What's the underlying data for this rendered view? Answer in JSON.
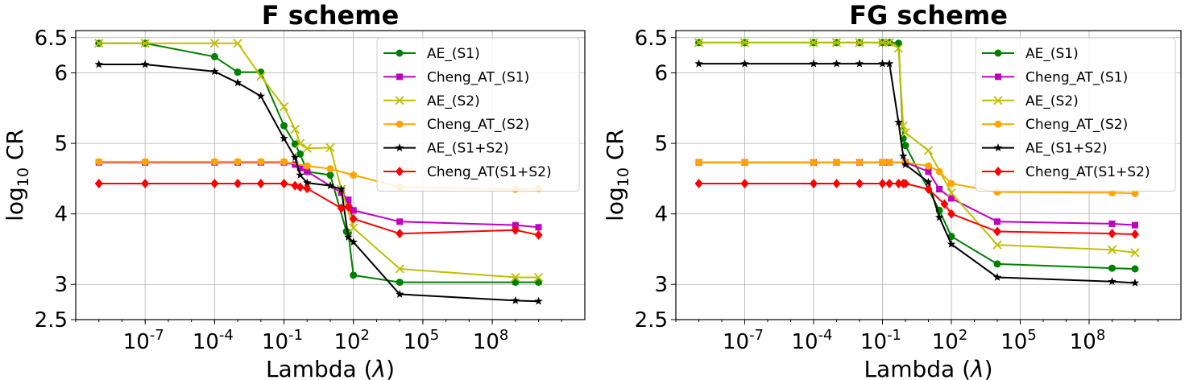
{
  "chart_data": [
    {
      "type": "line",
      "title": "F scheme",
      "xlabel": "Lambda (λ)",
      "ylabel": "log10 CR",
      "x_scale": "log",
      "xlim": [
        1e-10,
        1000000000000.0
      ],
      "ylim": [
        2.5,
        6.6
      ],
      "x_ticks": [
        1e-07,
        0.0001,
        0.1,
        100,
        100000,
        100000000
      ],
      "x_tick_labels": [
        "10-7",
        "10-4",
        "10-1",
        "102",
        "105",
        "108"
      ],
      "y_ticks": [
        2.5,
        3,
        4,
        5,
        6,
        6.5
      ],
      "y_tick_labels": [
        "2.5",
        "3",
        "4",
        "5",
        "6",
        "6.5"
      ],
      "grid": true,
      "legend_position": "top-right",
      "series": [
        {
          "name": "AE_(S1)",
          "color": "#008000",
          "marker": "circle",
          "x": [
            1e-09,
            1e-07,
            0.0001,
            0.001,
            0.01,
            0.1,
            0.3,
            0.5,
            1,
            10,
            50,
            60,
            100,
            10000,
            1000000000,
            10000000000
          ],
          "y": [
            6.42,
            6.42,
            6.23,
            6.01,
            6.01,
            5.25,
            4.99,
            4.85,
            4.6,
            4.55,
            3.75,
            3.73,
            3.13,
            3.03,
            3.03,
            3.03
          ]
        },
        {
          "name": "Cheng_AT_(S1)",
          "color": "#bf00bf",
          "marker": "square",
          "x": [
            1e-09,
            1e-07,
            0.0001,
            0.001,
            0.01,
            0.1,
            0.3,
            0.5,
            1,
            30,
            60,
            100,
            10000,
            1000000000,
            10000000000
          ],
          "y": [
            4.73,
            4.73,
            4.73,
            4.73,
            4.73,
            4.73,
            4.7,
            4.65,
            4.6,
            4.3,
            4.2,
            4.05,
            3.89,
            3.84,
            3.81
          ]
        },
        {
          "name": "AE_(S2)",
          "color": "#bfbf00",
          "marker": "x",
          "x": [
            1e-09,
            1e-07,
            0.0001,
            0.001,
            0.01,
            0.1,
            0.3,
            0.5,
            1,
            10,
            30,
            100,
            10000,
            1000000000,
            10000000000
          ],
          "y": [
            6.42,
            6.42,
            6.42,
            6.42,
            5.95,
            5.52,
            5.2,
            5.0,
            4.93,
            4.94,
            4.35,
            3.8,
            3.22,
            3.1,
            3.1
          ]
        },
        {
          "name": "Cheng_AT_(S2)",
          "color": "#ffa500",
          "marker": "circle",
          "x": [
            1e-09,
            1e-07,
            0.0001,
            0.001,
            0.01,
            0.1,
            1,
            10,
            100,
            10000,
            1000000000,
            10000000000
          ],
          "y": [
            4.74,
            4.74,
            4.74,
            4.74,
            4.74,
            4.74,
            4.68,
            4.64,
            4.55,
            4.38,
            4.35,
            4.36
          ]
        },
        {
          "name": "AE_(S1+S2)",
          "color": "#000000",
          "marker": "star",
          "x": [
            1e-09,
            1e-07,
            0.0001,
            0.001,
            0.01,
            0.1,
            0.3,
            0.5,
            1,
            10,
            30,
            60,
            100,
            10000,
            1000000000,
            10000000000
          ],
          "y": [
            6.12,
            6.12,
            6.02,
            5.86,
            5.67,
            5.07,
            4.8,
            4.55,
            4.44,
            4.4,
            4.35,
            3.67,
            3.6,
            2.86,
            2.77,
            2.76
          ]
        },
        {
          "name": "Cheng_AT(S1+S2)",
          "color": "#ff0000",
          "marker": "diamond",
          "x": [
            1e-09,
            1e-07,
            0.0001,
            0.001,
            0.01,
            0.1,
            0.3,
            0.5,
            1,
            30,
            60,
            100,
            10000,
            1000000000,
            10000000000
          ],
          "y": [
            4.43,
            4.43,
            4.43,
            4.43,
            4.43,
            4.43,
            4.4,
            4.38,
            4.36,
            4.08,
            4.1,
            3.93,
            3.72,
            3.77,
            3.7
          ]
        }
      ]
    },
    {
      "type": "line",
      "title": "FG scheme",
      "xlabel": "Lambda (λ)",
      "ylabel": "log10 CR",
      "x_scale": "log",
      "xlim": [
        1e-10,
        1000000000000.0
      ],
      "ylim": [
        2.5,
        6.6
      ],
      "x_ticks": [
        1e-07,
        0.0001,
        0.1,
        100,
        100000,
        100000000
      ],
      "x_tick_labels": [
        "10-7",
        "10-4",
        "10-1",
        "102",
        "105",
        "108"
      ],
      "y_ticks": [
        2.5,
        3,
        4,
        5,
        6,
        6.5
      ],
      "y_tick_labels": [
        "2.5",
        "3",
        "4",
        "5",
        "6",
        "6.5"
      ],
      "grid": true,
      "legend_position": "top-right",
      "series": [
        {
          "name": "AE_(S1)",
          "color": "#008000",
          "marker": "circle",
          "x": [
            1e-09,
            1e-07,
            0.0001,
            0.001,
            0.01,
            0.1,
            0.2,
            0.5,
            0.8,
            1,
            30,
            100,
            10000,
            1000000000,
            10000000000
          ],
          "y": [
            6.43,
            6.43,
            6.43,
            6.43,
            6.43,
            6.43,
            6.43,
            6.42,
            5.07,
            4.97,
            4.05,
            3.68,
            3.29,
            3.23,
            3.22
          ]
        },
        {
          "name": "Cheng_AT_(S1)",
          "color": "#bf00bf",
          "marker": "square",
          "x": [
            1e-09,
            1e-07,
            0.0001,
            0.001,
            0.01,
            0.1,
            0.2,
            1,
            10,
            30,
            100,
            10000,
            1000000000,
            10000000000
          ],
          "y": [
            4.73,
            4.73,
            4.73,
            4.73,
            4.73,
            4.73,
            4.73,
            4.73,
            4.6,
            4.35,
            4.22,
            3.89,
            3.86,
            3.84
          ]
        },
        {
          "name": "AE_(S2)",
          "color": "#bfbf00",
          "marker": "x",
          "x": [
            1e-09,
            1e-07,
            0.0001,
            0.001,
            0.01,
            0.1,
            0.2,
            0.5,
            0.8,
            1,
            10,
            100,
            10000,
            1000000000,
            10000000000
          ],
          "y": [
            6.43,
            6.43,
            6.43,
            6.43,
            6.43,
            6.43,
            6.43,
            6.35,
            5.25,
            5.15,
            4.9,
            4.3,
            3.56,
            3.49,
            3.45
          ]
        },
        {
          "name": "Cheng_AT_(S2)",
          "color": "#ffa500",
          "marker": "circle",
          "x": [
            1e-09,
            1e-07,
            0.0001,
            0.001,
            0.01,
            0.1,
            0.2,
            1,
            10,
            30,
            100,
            10000,
            1000000000,
            10000000000
          ],
          "y": [
            4.73,
            4.73,
            4.73,
            4.73,
            4.73,
            4.73,
            4.73,
            4.73,
            4.68,
            4.6,
            4.43,
            4.31,
            4.3,
            4.29
          ]
        },
        {
          "name": "AE_(S1+S2)",
          "color": "#000000",
          "marker": "star",
          "x": [
            1e-09,
            1e-07,
            0.0001,
            0.001,
            0.01,
            0.1,
            0.2,
            0.5,
            0.8,
            1,
            10,
            30,
            100,
            10000,
            1000000000,
            10000000000
          ],
          "y": [
            6.13,
            6.13,
            6.13,
            6.13,
            6.13,
            6.13,
            6.13,
            5.3,
            4.82,
            4.7,
            4.45,
            3.95,
            3.57,
            3.1,
            3.04,
            3.02
          ]
        },
        {
          "name": "Cheng_AT(S1+S2)",
          "color": "#ff0000",
          "marker": "diamond",
          "x": [
            1e-09,
            1e-07,
            0.0001,
            0.001,
            0.01,
            0.1,
            0.2,
            0.5,
            0.8,
            1,
            10,
            50,
            100,
            10000,
            1000000000,
            10000000000
          ],
          "y": [
            4.43,
            4.43,
            4.43,
            4.43,
            4.43,
            4.43,
            4.43,
            4.43,
            4.43,
            4.43,
            4.35,
            4.14,
            4.0,
            3.75,
            3.72,
            3.71
          ]
        }
      ]
    }
  ]
}
